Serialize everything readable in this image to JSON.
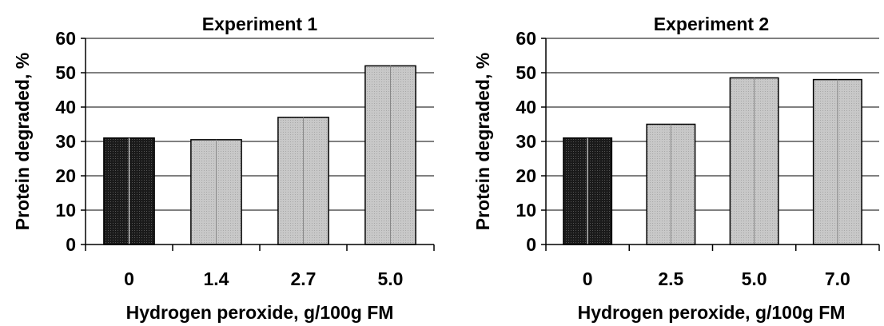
{
  "colors": {
    "control_bar": "#1a1a1a",
    "treatment_bar": "#c8c8c8",
    "gridline": "#000000",
    "text": "#000000"
  },
  "chart_data": [
    {
      "type": "bar",
      "title": "Experiment 1",
      "xlabel": "Hydrogen peroxide, g/100g FM",
      "ylabel": "Protein degraded, %",
      "categories": [
        "0",
        "1.4",
        "2.7",
        "5.0"
      ],
      "values": [
        31,
        30.5,
        37,
        52
      ],
      "ylim": [
        0,
        60
      ],
      "yticks": [
        "0",
        "10",
        "20",
        "30",
        "40",
        "50",
        "60"
      ],
      "grid": true
    },
    {
      "type": "bar",
      "title": "Experiment 2",
      "xlabel": "Hydrogen peroxide, g/100g FM",
      "ylabel": "Protein degraded, %",
      "categories": [
        "0",
        "2.5",
        "5.0",
        "7.0"
      ],
      "values": [
        31,
        35,
        48.5,
        48
      ],
      "ylim": [
        0,
        60
      ],
      "yticks": [
        "0",
        "10",
        "20",
        "30",
        "40",
        "50",
        "60"
      ],
      "grid": true
    }
  ]
}
